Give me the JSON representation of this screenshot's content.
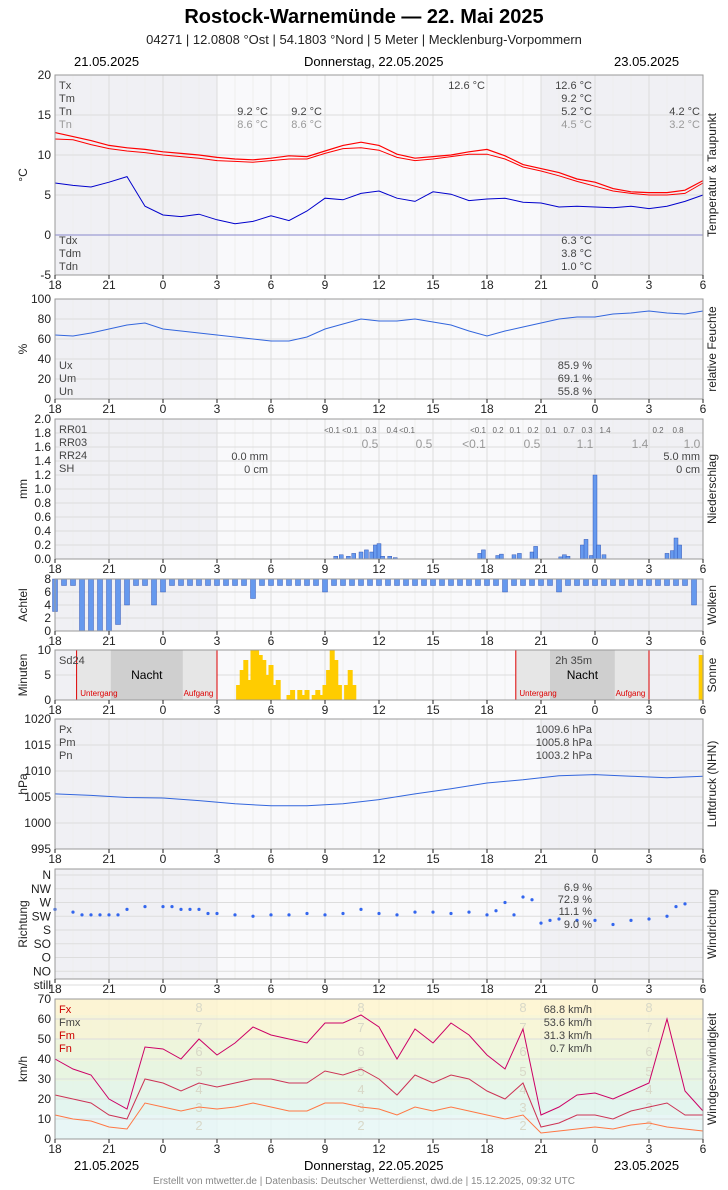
{
  "header": {
    "title": "Rostock-Warnemünde  —  22. Mai 2025",
    "subtitle": "04271  |  12.0808 °Ost  |  54.1803 °Nord  |  5 Meter  |  Mecklenburg-Vorpommern",
    "date_left": "21.05.2025",
    "date_center": "Donnerstag, 22.05.2025",
    "date_right": "23.05.2025"
  },
  "footer": "Erstellt von mtwetter.de | Datenbasis: Deutscher Wetterdienst, dwd.de | 15.12.2025, 09:32 UTC",
  "x_ticks": [
    "18",
    "21",
    "0",
    "3",
    "6",
    "9",
    "12",
    "15",
    "18",
    "21",
    "0",
    "3",
    "6"
  ],
  "colors": {
    "temp": "#ff0000",
    "dew": "#0000cc",
    "humidity": "#3366dd",
    "bars": "#6699ee",
    "sun": "#ffcc00",
    "night": "#cccccc",
    "event_line": "#dd0000",
    "gust": "#cc0066",
    "wind_mean": "#ff7744",
    "wind_dir": "#3366ee",
    "pressure": "#3366dd"
  },
  "chart_data": [
    {
      "type": "line",
      "name": "temperature",
      "ylabel": "°C",
      "side_label": "Temperatur & Taupunkt",
      "ylim": [
        -5,
        20
      ],
      "y_ticks": [
        "20",
        "15",
        "10",
        "5",
        "0",
        "-5"
      ],
      "x": [
        -6,
        -5,
        -4,
        -3,
        -2,
        -1,
        0,
        1,
        2,
        3,
        4,
        5,
        6,
        7,
        8,
        9,
        10,
        11,
        12,
        13,
        14,
        15,
        16,
        17,
        18,
        19,
        20,
        21,
        22,
        23,
        24,
        25,
        26,
        27,
        28,
        29,
        30
      ],
      "series": [
        {
          "name": "T",
          "values": [
            12.8,
            12.3,
            11.8,
            11.2,
            10.9,
            10.7,
            10.4,
            10.2,
            10.0,
            9.7,
            9.5,
            9.4,
            9.6,
            9.9,
            9.8,
            10.5,
            11.2,
            11.6,
            11.2,
            10.1,
            9.6,
            9.8,
            10.0,
            10.4,
            10.7,
            9.9,
            8.8,
            8.3,
            7.8,
            7.0,
            6.6,
            5.8,
            5.4,
            5.3,
            5.3,
            5.6,
            6.8
          ]
        },
        {
          "name": "Tn5",
          "values": [
            12.0,
            11.9,
            11.3,
            10.8,
            10.5,
            10.3,
            10.0,
            9.8,
            9.6,
            9.3,
            9.2,
            9.1,
            9.3,
            9.5,
            9.5,
            10.2,
            10.8,
            10.9,
            10.6,
            9.7,
            9.3,
            9.5,
            9.8,
            10.1,
            10.1,
            9.5,
            8.5,
            8.0,
            7.4,
            6.7,
            6.1,
            5.5,
            5.2,
            5.0,
            5.0,
            5.2,
            6.5
          ]
        },
        {
          "name": "Td",
          "values": [
            6.5,
            6.2,
            6.0,
            6.6,
            7.3,
            3.6,
            2.5,
            2.3,
            2.6,
            1.9,
            1.4,
            1.7,
            2.4,
            1.8,
            3.0,
            4.6,
            4.4,
            5.2,
            5.5,
            4.6,
            4.2,
            5.4,
            5.1,
            4.3,
            4.5,
            4.6,
            4.1,
            4.0,
            3.5,
            3.6,
            3.5,
            3.4,
            3.6,
            3.3,
            3.6,
            4.2,
            5.0
          ]
        }
      ],
      "labels_left": {
        "tx": "Tx",
        "tm": "Tm",
        "tn": "Tn",
        "tn_sub": "Tn",
        "tdx": "Tdx",
        "tdm": "Tdm",
        "tdn": "Tdn"
      },
      "annotations": {
        "tx_mid": "12.6 °C",
        "tx_right": "12.6 °C",
        "tm_right": "9.2 °C",
        "tn_a": "9.2 °C",
        "tn_b": "9.2 °C",
        "tn_right": "5.2 °C",
        "tn_far": "4.2 °C",
        "en_a": "8.6 °C",
        "en_b": "8.6 °C",
        "en_right": "4.5 °C",
        "en_far": "3.2 °C",
        "tdx": "6.3 °C",
        "tdm": "3.8 °C",
        "tdn": "1.0 °C"
      }
    },
    {
      "type": "line",
      "name": "humidity",
      "ylabel": "%",
      "side_label": "relative Feuchte",
      "ylim": [
        0,
        100
      ],
      "y_ticks": [
        "100",
        "80",
        "60",
        "40",
        "20",
        "0"
      ],
      "x": [
        -6,
        -5,
        -4,
        -3,
        -2,
        -1,
        0,
        1,
        2,
        3,
        4,
        5,
        6,
        7,
        8,
        9,
        10,
        11,
        12,
        13,
        14,
        15,
        16,
        17,
        18,
        19,
        20,
        21,
        22,
        23,
        24,
        25,
        26,
        27,
        28,
        29,
        30
      ],
      "series": [
        {
          "name": "U",
          "values": [
            64,
            63,
            66,
            70,
            74,
            76,
            70,
            68,
            66,
            64,
            62,
            60,
            58,
            58,
            62,
            70,
            75,
            80,
            78,
            78,
            80,
            77,
            74,
            68,
            63,
            68,
            72,
            76,
            80,
            82,
            82,
            85,
            86,
            88,
            86,
            85,
            88
          ]
        }
      ],
      "labels_left": {
        "ux": "Ux",
        "um": "Um",
        "un": "Un"
      },
      "annotations": {
        "ux": "85.9 %",
        "um": "69.1 %",
        "un": "55.8 %"
      }
    },
    {
      "type": "bar",
      "name": "precipitation",
      "ylabel": "mm",
      "side_label": "Niederschlag",
      "ylim": [
        0,
        2.0
      ],
      "y_ticks": [
        "2.0",
        "1.8",
        "1.6",
        "1.4",
        "1.2",
        "1.0",
        "0.8",
        "0.6",
        "0.4",
        "0.2",
        "0.0"
      ],
      "x": [
        9.6,
        9.9,
        10.3,
        10.6,
        11.0,
        11.3,
        11.6,
        11.8,
        12.0,
        12.2,
        12.6,
        12.9,
        17.6,
        17.8,
        18.6,
        18.8,
        19.5,
        19.8,
        20.5,
        20.7,
        22.1,
        22.3,
        22.5,
        23.3,
        23.5,
        23.8,
        24.0,
        24.2,
        24.5,
        28.0,
        28.3,
        28.5,
        28.7
      ],
      "values": [
        0.04,
        0.06,
        0.04,
        0.08,
        0.1,
        0.13,
        0.1,
        0.2,
        0.22,
        0.04,
        0.04,
        0.02,
        0.08,
        0.13,
        0.05,
        0.07,
        0.06,
        0.08,
        0.1,
        0.18,
        0.03,
        0.06,
        0.04,
        0.2,
        0.28,
        0.05,
        1.2,
        0.2,
        0.06,
        0.08,
        0.12,
        0.3,
        0.2
      ],
      "labels_left": {
        "rr01": "RR01",
        "rr03": "RR03",
        "rr24": "RR24",
        "sh": "SH"
      },
      "rr01_values": [
        "<0.1",
        "<0.1",
        "0.3",
        "0.4",
        "<0.1",
        "<0.1",
        "0.2",
        "0.1",
        "0.2",
        "0.1",
        "0.7",
        "0.3",
        "1.4",
        "0.2",
        "0.8"
      ],
      "rr03_values": [
        "0.5",
        "0.5",
        "<0.1",
        "0.5",
        "1.1",
        "1.4",
        "1.0"
      ],
      "annotations": {
        "rr24_left": "0.0 mm",
        "sh_left": "0 cm",
        "rr24_right": "5.0 mm",
        "sh_right": "0 cm"
      }
    },
    {
      "type": "bar",
      "name": "clouds",
      "ylabel": "Achtel",
      "side_label": "Wolken",
      "ylim": [
        0,
        8
      ],
      "y_ticks": [
        "8",
        "6",
        "4",
        "2",
        "0"
      ],
      "x": [
        -6,
        -5.5,
        -5,
        -4.5,
        -4,
        -3.5,
        -3,
        -2.5,
        -2,
        -1.5,
        -1,
        -0.5,
        0,
        0.5,
        1,
        1.5,
        2,
        2.5,
        3,
        3.5,
        4,
        4.5,
        5,
        5.5,
        6,
        6.5,
        7,
        7.5,
        8,
        8.5,
        9,
        9.5,
        10,
        10.5,
        11,
        11.5,
        12,
        12.5,
        13,
        13.5,
        14,
        14.5,
        15,
        15.5,
        16,
        16.5,
        17,
        17.5,
        18,
        18.5,
        19,
        19.5,
        20,
        20.5,
        21,
        21.5,
        22,
        22.5,
        23,
        23.5,
        24,
        24.5,
        25,
        25.5,
        26,
        26.5,
        27,
        27.5,
        28,
        28.5,
        29,
        29.5
      ],
      "values": [
        5,
        1,
        1,
        8,
        8,
        8,
        8,
        7,
        4,
        1,
        1,
        4,
        2,
        1,
        1,
        1,
        1,
        1,
        1,
        1,
        1,
        1,
        3,
        1,
        1,
        1,
        1,
        1,
        1,
        1,
        2,
        1,
        1,
        1,
        1,
        1,
        1,
        1,
        1,
        1,
        1,
        1,
        1,
        1,
        1,
        1,
        1,
        1,
        1,
        1,
        2,
        1,
        1,
        1,
        1,
        1,
        2,
        1,
        1,
        1,
        1,
        1,
        1,
        1,
        1,
        1,
        1,
        1,
        1,
        1,
        1,
        4
      ],
      "note": "values are cloud cover in eighths shown as bars hanging from the top"
    },
    {
      "type": "bar",
      "name": "sunshine",
      "ylabel": "Minuten",
      "side_label": "Sonne",
      "ylim": [
        0,
        10
      ],
      "y_ticks": [
        "10",
        "5",
        "0"
      ],
      "x": [
        4.2,
        4.4,
        4.6,
        4.8,
        5.0,
        5.2,
        5.4,
        5.6,
        5.8,
        6.0,
        6.2,
        6.4,
        7.0,
        7.2,
        7.6,
        7.8,
        8.0,
        8.4,
        8.6,
        8.8,
        9.0,
        9.2,
        9.4,
        9.6,
        9.8,
        10.2,
        10.4,
        10.6,
        29.9
      ],
      "values": [
        3,
        6,
        8,
        4,
        10,
        10,
        9,
        8,
        5,
        7,
        3,
        4,
        1,
        2,
        2,
        1,
        2,
        1,
        2,
        1,
        3,
        6,
        10,
        8,
        3,
        3,
        6,
        3,
        9
      ],
      "labels_left": {
        "sd24": "Sd24"
      },
      "annotations": {
        "sd24_right": "2h 35m",
        "night_a": "Nacht",
        "night_b": "Nacht",
        "sunset_a": "Untergang",
        "sunrise_a": "Aufgang",
        "sunset_b": "Untergang",
        "sunrise_b": "Aufgang"
      }
    },
    {
      "type": "line",
      "name": "pressure",
      "ylabel": "hPa",
      "side_label": "Luftdruck (NHN)",
      "ylim": [
        995,
        1020
      ],
      "y_ticks": [
        "1020",
        "1015",
        "1010",
        "1005",
        "1000",
        "995"
      ],
      "x": [
        -6,
        -4,
        -2,
        0,
        2,
        4,
        6,
        8,
        10,
        12,
        14,
        16,
        18,
        20,
        22,
        24,
        26,
        28,
        30
      ],
      "series": [
        {
          "name": "P",
          "values": [
            1005.6,
            1005.3,
            1004.9,
            1004.8,
            1004.3,
            1003.7,
            1003.3,
            1003.3,
            1003.7,
            1004.5,
            1005.6,
            1006.6,
            1007.7,
            1008.3,
            1009.1,
            1009.3,
            1009.0,
            1008.7,
            1009.0
          ]
        }
      ],
      "labels_left": {
        "px": "Px",
        "pm": "Pm",
        "pn": "Pn"
      },
      "annotations": {
        "px": "1009.6 hPa",
        "pm": "1005.8 hPa",
        "pn": "1003.2 hPa"
      }
    },
    {
      "type": "scatter",
      "name": "wind_direction",
      "ylabel": "Richtung",
      "side_label": "Windrichtung",
      "categories": [
        "N",
        "NW",
        "W",
        "SW",
        "S",
        "SO",
        "O",
        "NO",
        "still"
      ],
      "x": [
        -6,
        -5,
        -4.5,
        -4,
        -3.5,
        -3,
        -2.5,
        -2,
        -1,
        0,
        0.5,
        1,
        1.5,
        2,
        2.5,
        3,
        4,
        5,
        6,
        7,
        8,
        9,
        10,
        11,
        12,
        13,
        14,
        15,
        16,
        17,
        18,
        18.5,
        19,
        19.5,
        20,
        20.5,
        21,
        21.5,
        22,
        23,
        24,
        25,
        26,
        27,
        28,
        28.5,
        29
      ],
      "values": [
        2.5,
        2.7,
        2.9,
        2.9,
        2.9,
        2.9,
        2.9,
        2.5,
        2.3,
        2.3,
        2.3,
        2.5,
        2.5,
        2.5,
        2.8,
        2.8,
        2.9,
        3.0,
        2.9,
        2.9,
        2.8,
        2.9,
        2.8,
        2.5,
        2.8,
        2.9,
        2.7,
        2.7,
        2.8,
        2.7,
        2.9,
        2.6,
        2.0,
        2.9,
        1.6,
        1.8,
        3.5,
        3.3,
        3.2,
        3.3,
        3.3,
        3.6,
        3.3,
        3.2,
        3.0,
        2.3,
        2.1
      ],
      "annotations": {
        "a": "6.9 %",
        "b": "72.9 %",
        "c": "11.1 %",
        "d": "9.0 %"
      }
    },
    {
      "type": "line",
      "name": "wind_speed",
      "ylabel": "km/h",
      "side_label": "Windgeschwindigkeit",
      "ylim": [
        0,
        70
      ],
      "y_ticks": [
        "70",
        "60",
        "50",
        "40",
        "30",
        "20",
        "10",
        "0"
      ],
      "x": [
        -6,
        -5,
        -4,
        -3,
        -2,
        -1,
        0,
        1,
        2,
        3,
        4,
        5,
        6,
        7,
        8,
        9,
        10,
        11,
        12,
        13,
        14,
        15,
        16,
        17,
        18,
        19,
        20,
        21,
        22,
        23,
        24,
        25,
        26,
        27,
        28,
        29,
        30
      ],
      "series": [
        {
          "name": "Fx",
          "values": [
            40,
            35,
            32,
            20,
            15,
            46,
            45,
            40,
            50,
            42,
            48,
            56,
            52,
            50,
            48,
            58,
            58,
            62,
            56,
            40,
            55,
            48,
            58,
            52,
            42,
            35,
            55,
            12,
            16,
            22,
            23,
            20,
            24,
            28,
            60,
            24,
            14
          ]
        },
        {
          "name": "Fm",
          "values": [
            22,
            20,
            18,
            12,
            10,
            30,
            28,
            24,
            28,
            26,
            28,
            30,
            30,
            28,
            28,
            34,
            32,
            35,
            30,
            22,
            32,
            28,
            32,
            30,
            24,
            20,
            28,
            6,
            8,
            12,
            12,
            10,
            14,
            16,
            18,
            12,
            12
          ]
        },
        {
          "name": "Fn",
          "values": [
            12,
            10,
            9,
            6,
            5,
            18,
            16,
            14,
            16,
            15,
            16,
            18,
            16,
            14,
            14,
            18,
            18,
            16,
            15,
            12,
            16,
            14,
            16,
            14,
            12,
            10,
            12,
            3,
            4,
            5,
            6,
            5,
            7,
            8,
            6,
            5,
            4
          ]
        }
      ],
      "labels_left": {
        "fx": "Fx",
        "fmx": "Fmx",
        "fm": "Fm",
        "fn": "Fn"
      },
      "annotations": {
        "fx": "68.8 km/h",
        "fmx": "53.6 km/h",
        "fm": "31.3 km/h",
        "fn": "0.7 km/h"
      },
      "beaufort_bands": [
        "8",
        "7",
        "6",
        "5",
        "4",
        "3",
        "2"
      ]
    }
  ]
}
